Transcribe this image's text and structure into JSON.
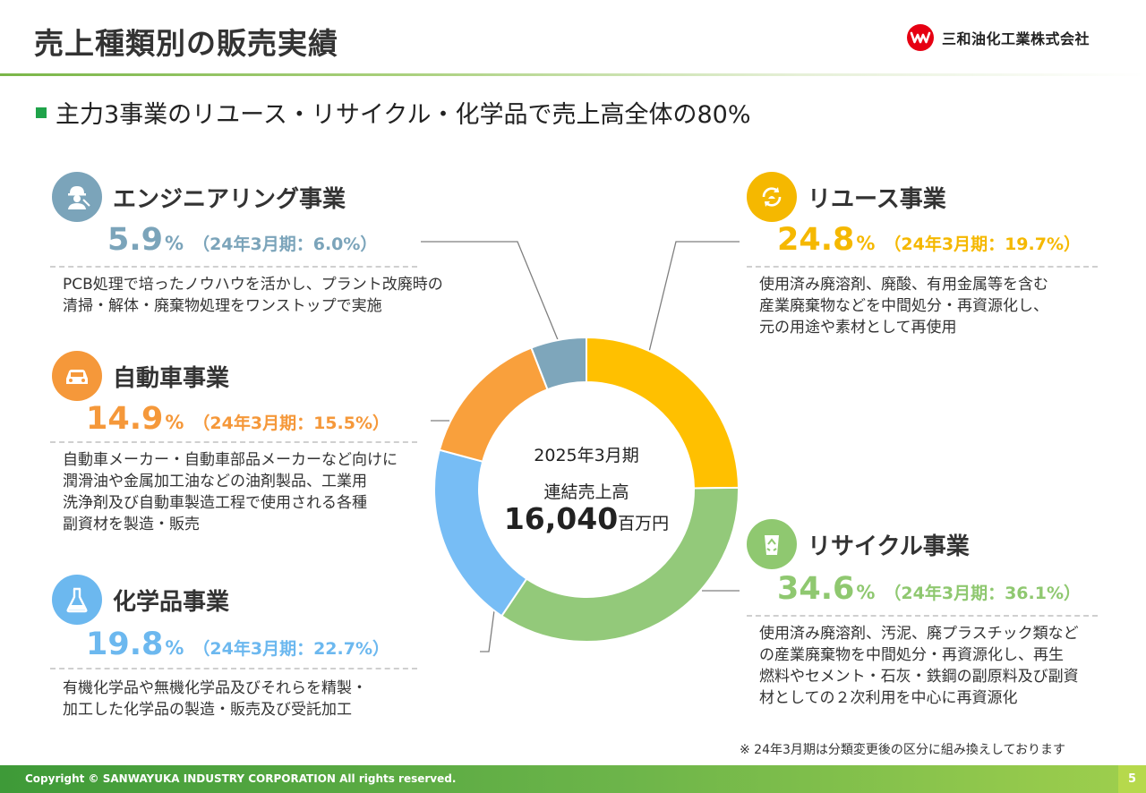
{
  "header": {
    "title": "売上種類別の販売実績",
    "company": "三和油化工業株式会社",
    "subtitle": "主力3事業のリユース・リサイクル・化学品で売上高全体の80%"
  },
  "center": {
    "period": "2025年3月期",
    "label": "連結売上高",
    "value": "16,040",
    "unit": "百万円"
  },
  "segments": {
    "engineering": {
      "name": "エンジニアリング事業",
      "pct": "5.9",
      "unit": "%",
      "prev": "（24年3月期：6.0%）",
      "desc1": "PCB処理で培ったノウハウを活かし、プラント改廃時の",
      "desc2": "清掃・解体・廃棄物処理をワンストップで実施",
      "color": "#7ba4ba"
    },
    "automotive": {
      "name": "自動車事業",
      "pct": "14.9",
      "unit": "%",
      "prev": "（24年3月期：15.5%）",
      "desc1": "自動車メーカー・自動車部品メーカーなど向けに",
      "desc2": "潤滑油や金属加工油などの油剤製品、工業用",
      "desc3": "洗浄剤及び自動車製造工程で使用される各種",
      "desc4": "副資材を製造・販売",
      "color": "#f5983a"
    },
    "chemical": {
      "name": "化学品事業",
      "pct": "19.8",
      "unit": "%",
      "prev": "（24年3月期：22.7%）",
      "desc1": "有機化学品や無機化学品及びそれらを精製・",
      "desc2": "加工した化学品の製造・販売及び受託加工",
      "color": "#6cb8ef"
    },
    "reuse": {
      "name": "リユース事業",
      "pct": "24.8",
      "unit": "%",
      "prev": "（24年3月期：19.7%）",
      "desc1": "使用済み廃溶剤、廃酸、有用金属等を含む",
      "desc2": "産業廃棄物などを中間処分・再資源化し、",
      "desc3": "元の用途や素材として再使用",
      "color": "#f5b800"
    },
    "recycle": {
      "name": "リサイクル事業",
      "pct": "34.6",
      "unit": "%",
      "prev": "（24年3月期：36.1%）",
      "desc1": "使用済み廃溶剤、汚泥、廃プラスチック類など",
      "desc2": "の産業廃棄物を中間処分・再資源化し、再生",
      "desc3": "燃料やセメント・石灰・鉄鋼の副原料及び副資",
      "desc4": "材としての２次利用を中心に再資源化",
      "color": "#8fc870"
    }
  },
  "chart_data": {
    "type": "pie",
    "subtype": "donut",
    "categories": [
      "リユース事業",
      "リサイクル事業",
      "化学品事業",
      "自動車事業",
      "エンジニアリング事業"
    ],
    "values": [
      24.8,
      34.6,
      19.8,
      14.9,
      5.9
    ],
    "previous_values": [
      19.7,
      36.1,
      22.7,
      15.5,
      6.0
    ],
    "colors": [
      "#ffc000",
      "#93c97a",
      "#77bdf5",
      "#f9a03c",
      "#7ea6bb"
    ],
    "total": "16,040",
    "total_unit": "百万円"
  },
  "note": "※ 24年3月期は分類変更後の区分に組み換えしております",
  "footer": {
    "copyright": "Copyright © SANWAYUKA INDUSTRY CORPORATION All rights reserved.",
    "page": "5"
  }
}
